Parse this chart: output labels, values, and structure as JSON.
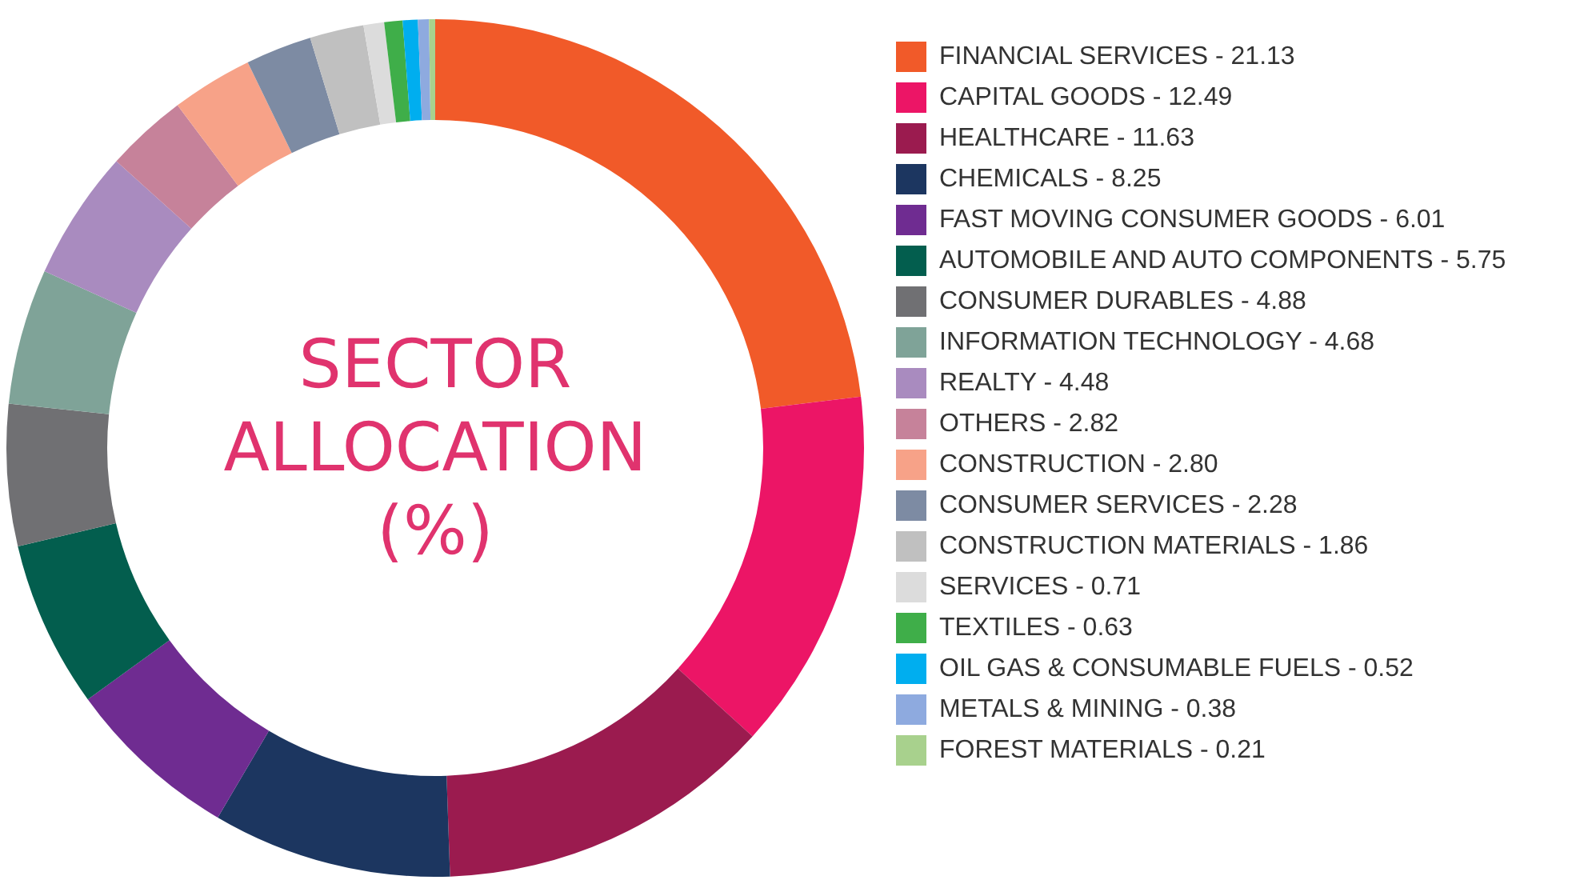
{
  "chart_data": {
    "type": "donut",
    "title": "SECTOR ALLOCATION (%)",
    "categories": [
      "FINANCIAL SERVICES",
      "CAPITAL GOODS",
      "HEALTHCARE",
      "CHEMICALS",
      "FAST MOVING CONSUMER GOODS",
      "AUTOMOBILE AND AUTO COMPONENTS",
      "CONSUMER DURABLES",
      "INFORMATION TECHNOLOGY",
      "REALTY",
      "OTHERS",
      "CONSTRUCTION",
      "CONSUMER SERVICES",
      "CONSTRUCTION MATERIALS",
      "SERVICES",
      "TEXTILES",
      "OIL GAS & CONSUMABLE FUELS",
      "METALS & MINING",
      "FOREST MATERIALS"
    ],
    "values": [
      21.13,
      12.49,
      11.63,
      8.25,
      6.01,
      5.75,
      4.88,
      4.68,
      4.48,
      2.82,
      2.8,
      2.28,
      1.86,
      0.71,
      0.63,
      0.52,
      0.38,
      0.21
    ],
    "value_labels": [
      "21.13",
      "12.49",
      "11.63",
      "8.25",
      "6.01",
      "5.75",
      "4.88",
      "4.68",
      "4.48",
      "2.82",
      "2.80",
      "2.28",
      "1.86",
      "0.71",
      "0.63",
      "0.52",
      "0.38",
      "0.21"
    ],
    "colors": [
      "#f15a29",
      "#ec1566",
      "#9b1b4f",
      "#1c3660",
      "#6f2c91",
      "#035e4e",
      "#707073",
      "#7fa398",
      "#a98bbf",
      "#c6829a",
      "#f7a288",
      "#7d8ba3",
      "#c0c0c0",
      "#dcdcdc",
      "#3fae49",
      "#00aeef",
      "#8eaadf",
      "#a8d18d"
    ],
    "legend": "right"
  }
}
